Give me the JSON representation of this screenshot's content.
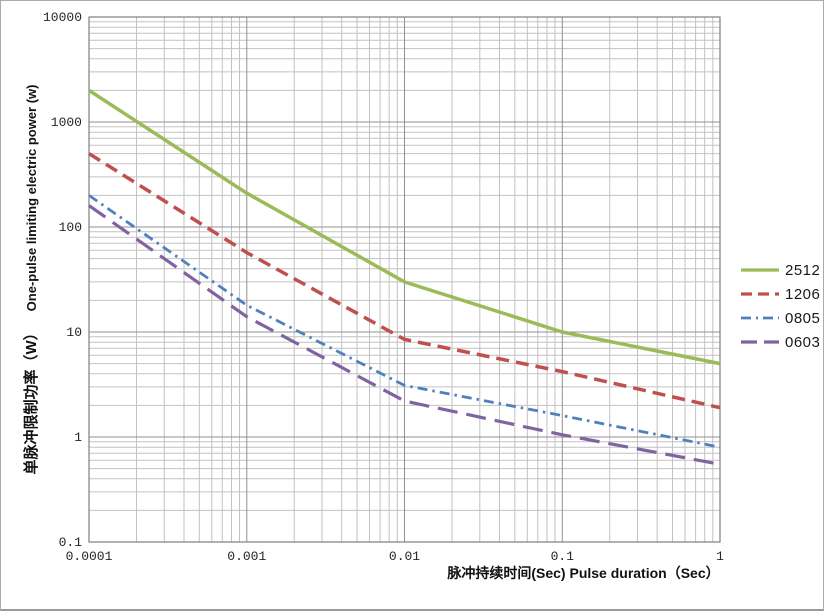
{
  "chart_data": {
    "type": "line",
    "x_scale": "log",
    "y_scale": "log",
    "xlim": [
      0.0001,
      1
    ],
    "ylim": [
      0.1,
      10000
    ],
    "grid": {
      "major": true,
      "minor": true
    },
    "legend_position": "right",
    "xlabel": "脉冲持续时间(Sec) Pulse duration（Sec）",
    "ylabel_zh": "单脉冲限制功率（W）",
    "ylabel_en": "One-pulse limiting electric power (w)",
    "x_ticks": [
      "0.0001",
      "0.001",
      "0.01",
      "0.1",
      "1"
    ],
    "y_ticks": [
      "10000",
      "1000",
      "100",
      "10",
      "1",
      "0.1"
    ],
    "x": [
      0.0001,
      0.001,
      0.01,
      0.1,
      1
    ],
    "series": [
      {
        "name": "2512",
        "color": "#9BBB59",
        "dash": "solid",
        "width": 3.5,
        "values": [
          2000,
          210,
          30,
          10,
          5
        ]
      },
      {
        "name": "1206",
        "color": "#C0504D",
        "dash": "dashed",
        "width": 3.5,
        "values": [
          500,
          57,
          8.5,
          4.2,
          1.9
        ]
      },
      {
        "name": "0805",
        "color": "#4F81BD",
        "dash": "dashdot",
        "width": 2.8,
        "values": [
          200,
          18,
          3.1,
          1.6,
          0.8
        ]
      },
      {
        "name": "0603",
        "color": "#8064A2",
        "dash": "longdash",
        "width": 3.2,
        "values": [
          160,
          14,
          2.2,
          1.05,
          0.55
        ]
      }
    ]
  }
}
